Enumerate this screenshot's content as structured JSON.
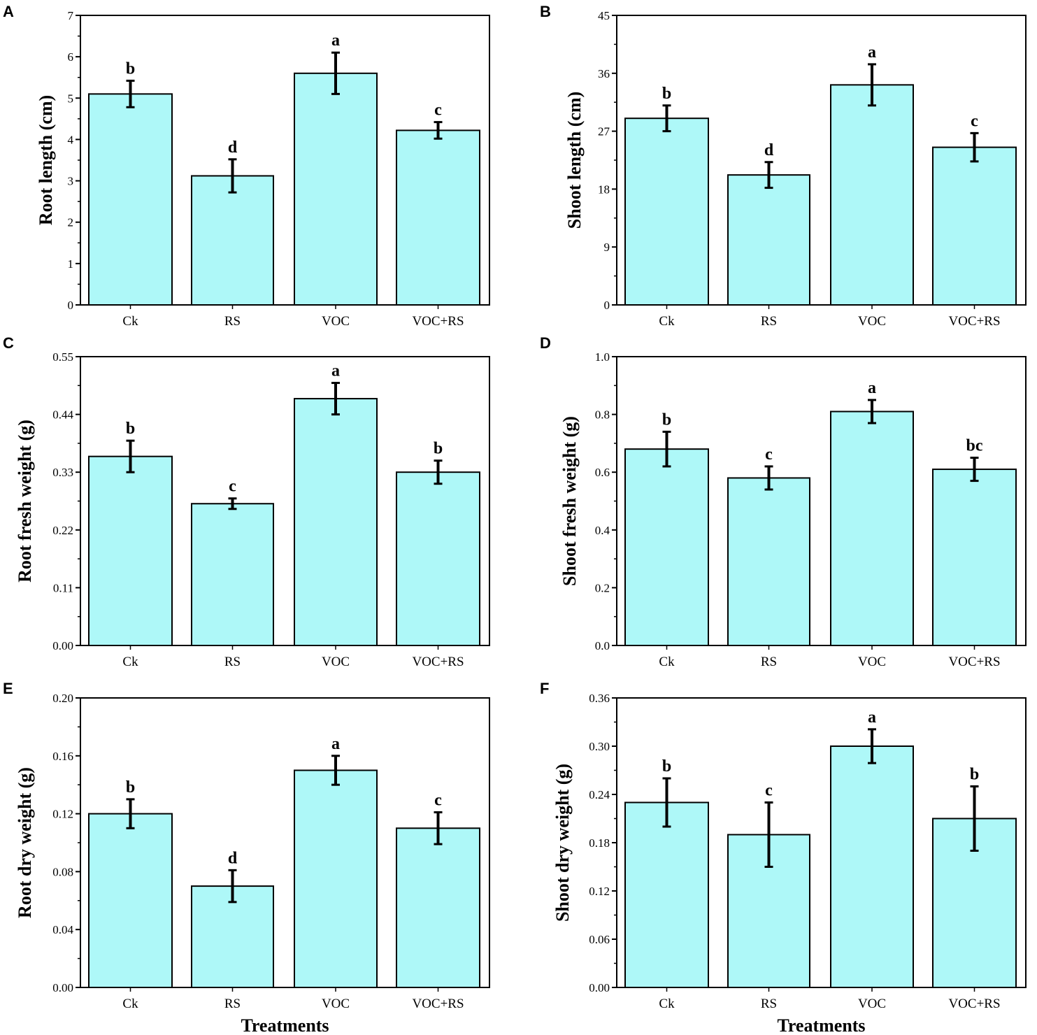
{
  "chart_data": [
    {
      "type": "bar",
      "panel": "A",
      "categories": [
        "Ck",
        "RS",
        "VOC",
        "VOC+RS"
      ],
      "values": [
        5.1,
        3.12,
        5.6,
        4.22
      ],
      "errors": [
        0.32,
        0.4,
        0.5,
        0.2
      ],
      "significance": [
        "b",
        "d",
        "a",
        "c"
      ],
      "ylabel": "Root length (cm)",
      "xlabel": "",
      "ylim": [
        0,
        7
      ],
      "yticks": [
        "0",
        "1",
        "2",
        "3",
        "4",
        "5",
        "6",
        "7"
      ]
    },
    {
      "type": "bar",
      "panel": "B",
      "categories": [
        "Ck",
        "RS",
        "VOC",
        "VOC+RS"
      ],
      "values": [
        29,
        20.2,
        34.2,
        24.5
      ],
      "errors": [
        2.0,
        2.0,
        3.2,
        2.2
      ],
      "significance": [
        "b",
        "d",
        "a",
        "c"
      ],
      "ylabel": "Shoot length (cm)",
      "xlabel": "",
      "ylim": [
        0,
        45
      ],
      "yticks": [
        "0",
        "9",
        "18",
        "27",
        "36",
        "45"
      ]
    },
    {
      "type": "bar",
      "panel": "C",
      "categories": [
        "Ck",
        "RS",
        "VOC",
        "VOC+RS"
      ],
      "values": [
        0.36,
        0.27,
        0.47,
        0.33
      ],
      "errors": [
        0.03,
        0.01,
        0.03,
        0.022
      ],
      "significance": [
        "b",
        "c",
        "a",
        "b"
      ],
      "ylabel": "Root fresh weight (g)",
      "xlabel": "",
      "ylim": [
        0,
        0.55
      ],
      "yticks": [
        "0.00",
        "0.11",
        "0.22",
        "0.33",
        "0.44",
        "0.55"
      ]
    },
    {
      "type": "bar",
      "panel": "D",
      "categories": [
        "Ck",
        "RS",
        "VOC",
        "VOC+RS"
      ],
      "values": [
        0.68,
        0.58,
        0.81,
        0.61
      ],
      "errors": [
        0.06,
        0.04,
        0.04,
        0.04
      ],
      "significance": [
        "b",
        "c",
        "a",
        "bc"
      ],
      "ylabel": "Shoot fresh weight (g)",
      "xlabel": "",
      "ylim": [
        0,
        1.0
      ],
      "yticks": [
        "0.0",
        "0.2",
        "0.4",
        "0.6",
        "0.8",
        "1.0"
      ]
    },
    {
      "type": "bar",
      "panel": "E",
      "categories": [
        "Ck",
        "RS",
        "VOC",
        "VOC+RS"
      ],
      "values": [
        0.12,
        0.07,
        0.15,
        0.11
      ],
      "errors": [
        0.01,
        0.011,
        0.01,
        0.011
      ],
      "significance": [
        "b",
        "d",
        "a",
        "c"
      ],
      "ylabel": "Root dry weight (g)",
      "xlabel": "Treatments",
      "ylim": [
        0,
        0.2
      ],
      "yticks": [
        "0.00",
        "0.04",
        "0.08",
        "0.12",
        "0.16",
        "0.20"
      ]
    },
    {
      "type": "bar",
      "panel": "F",
      "categories": [
        "Ck",
        "RS",
        "VOC",
        "VOC+RS"
      ],
      "values": [
        0.23,
        0.19,
        0.3,
        0.21
      ],
      "errors": [
        0.03,
        0.04,
        0.021,
        0.04
      ],
      "significance": [
        "b",
        "c",
        "a",
        "b"
      ],
      "ylabel": "Shoot dry weight (g)",
      "xlabel": "Treatments",
      "ylim": [
        0,
        0.36
      ],
      "yticks": [
        "0.00",
        "0.06",
        "0.12",
        "0.18",
        "0.24",
        "0.30",
        "0.36"
      ]
    }
  ],
  "style": {
    "bar_color": "#aef8f8",
    "stroke_color": "#000000"
  }
}
